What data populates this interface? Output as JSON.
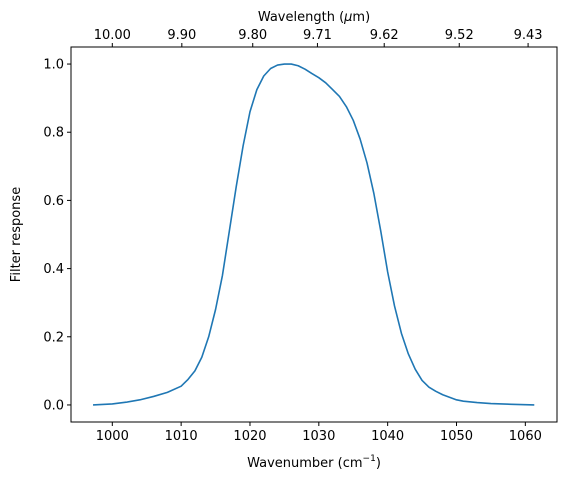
{
  "chart_data": {
    "type": "line",
    "title": "",
    "xlabel": "Wavenumber (cm",
    "xlabel_sup": "−1",
    "xlabel_suffix": ")",
    "ylabel": "Filter response",
    "top_xlabel": "Wavelength (",
    "top_xlabel_mu": "μ",
    "top_xlabel_suffix": "m)",
    "xlim": [
      994.0,
      1064.6
    ],
    "ylim": [
      -0.05,
      1.05
    ],
    "grid": false,
    "legend": "none",
    "x_ticks": [
      1000,
      1010,
      1020,
      1030,
      1040,
      1050,
      1060
    ],
    "x_tick_labels": [
      "1000",
      "1010",
      "1020",
      "1030",
      "1040",
      "1050",
      "1060"
    ],
    "y_ticks": [
      0.0,
      0.2,
      0.4,
      0.6,
      0.8,
      1.0
    ],
    "y_tick_labels": [
      "0.0",
      "0.2",
      "0.4",
      "0.6",
      "0.8",
      "1.0"
    ],
    "top_ticks": [
      1000.0,
      1010.1,
      1020.4,
      1029.8,
      1039.5,
      1050.4,
      1060.4
    ],
    "top_tick_labels": [
      "10.00",
      "9.90",
      "9.80",
      "9.71",
      "9.62",
      "9.52",
      "9.43"
    ],
    "series": [
      {
        "color": "#1f77b4",
        "x": [
          997.2,
          1000,
          1002,
          1004,
          1006,
          1008,
          1010,
          1011,
          1012,
          1013,
          1014,
          1015,
          1016,
          1017,
          1018,
          1019,
          1020,
          1021,
          1022,
          1023,
          1024,
          1025,
          1026,
          1027,
          1028,
          1029,
          1030,
          1031,
          1032,
          1033,
          1034,
          1035,
          1036,
          1037,
          1038,
          1039,
          1040,
          1041,
          1042,
          1043,
          1044,
          1045,
          1046,
          1047,
          1048,
          1050,
          1051,
          1053,
          1055,
          1058,
          1061.3
        ],
        "y": [
          0.0,
          0.003,
          0.008,
          0.015,
          0.025,
          0.037,
          0.055,
          0.075,
          0.1,
          0.14,
          0.2,
          0.28,
          0.38,
          0.51,
          0.64,
          0.76,
          0.86,
          0.925,
          0.965,
          0.987,
          0.997,
          1.0,
          1.0,
          0.995,
          0.985,
          0.972,
          0.96,
          0.945,
          0.925,
          0.905,
          0.875,
          0.835,
          0.78,
          0.71,
          0.62,
          0.51,
          0.39,
          0.29,
          0.21,
          0.15,
          0.105,
          0.072,
          0.052,
          0.04,
          0.03,
          0.015,
          0.011,
          0.007,
          0.004,
          0.002,
          0.0
        ]
      }
    ]
  }
}
